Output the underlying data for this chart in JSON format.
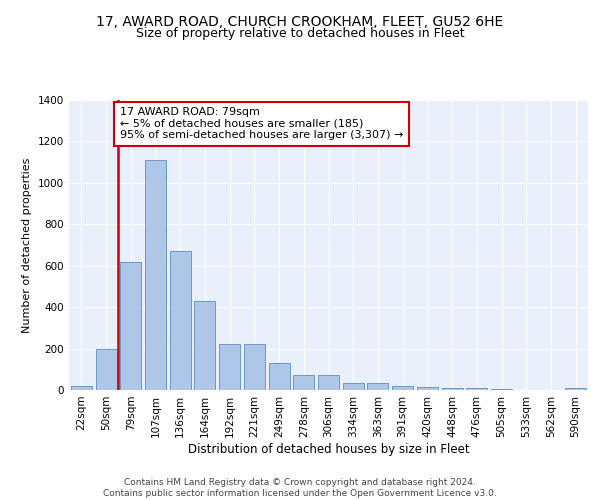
{
  "title1": "17, AWARD ROAD, CHURCH CROOKHAM, FLEET, GU52 6HE",
  "title2": "Size of property relative to detached houses in Fleet",
  "xlabel": "Distribution of detached houses by size in Fleet",
  "ylabel": "Number of detached properties",
  "categories": [
    "22sqm",
    "50sqm",
    "79sqm",
    "107sqm",
    "136sqm",
    "164sqm",
    "192sqm",
    "221sqm",
    "249sqm",
    "278sqm",
    "306sqm",
    "334sqm",
    "363sqm",
    "391sqm",
    "420sqm",
    "448sqm",
    "476sqm",
    "505sqm",
    "533sqm",
    "562sqm",
    "590sqm"
  ],
  "values": [
    18,
    197,
    620,
    1110,
    670,
    430,
    220,
    220,
    130,
    73,
    73,
    32,
    32,
    20,
    15,
    10,
    10,
    5,
    0,
    0,
    12
  ],
  "bar_color": "#aec6e8",
  "bar_edge_color": "#5a8fc2",
  "vline_x": 1.5,
  "vline_color": "#cc0000",
  "annotation_text": "17 AWARD ROAD: 79sqm\n← 5% of detached houses are smaller (185)\n95% of semi-detached houses are larger (3,307) →",
  "annotation_box_color": "#ffffff",
  "annotation_box_edge_color": "#cc0000",
  "footer_text": "Contains HM Land Registry data © Crown copyright and database right 2024.\nContains public sector information licensed under the Open Government Licence v3.0.",
  "ylim": [
    0,
    1400
  ],
  "yticks": [
    0,
    200,
    400,
    600,
    800,
    1000,
    1200,
    1400
  ],
  "background_color": "#eaf0fb",
  "grid_color": "#ffffff",
  "title1_fontsize": 10,
  "title2_fontsize": 9,
  "xlabel_fontsize": 8.5,
  "ylabel_fontsize": 8,
  "tick_fontsize": 7.5,
  "annotation_fontsize": 8,
  "footer_fontsize": 6.5
}
